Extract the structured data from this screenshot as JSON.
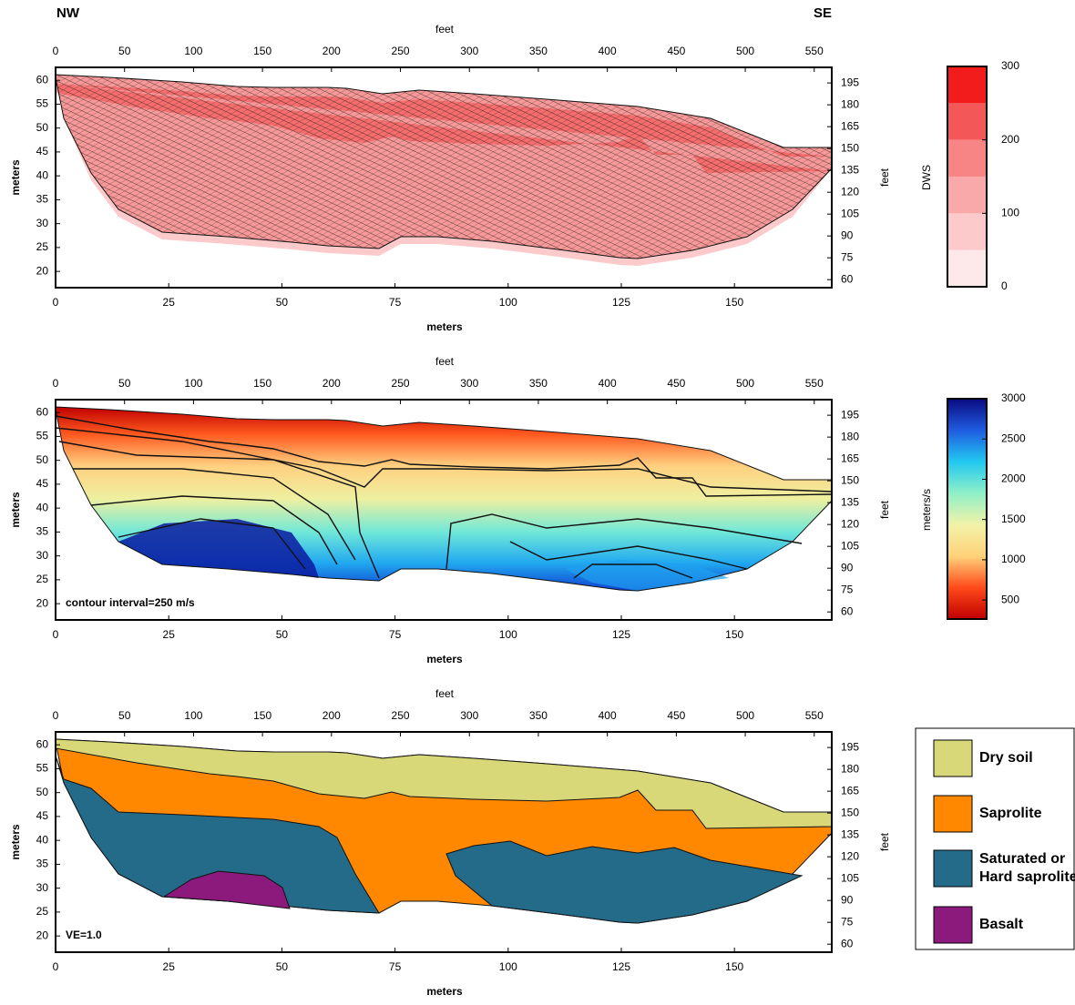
{
  "header": {
    "left": "NW",
    "right": "SE"
  },
  "axes": {
    "x_label": "meters",
    "x_top_label": "feet",
    "y_label": "meters",
    "y_right_label": "feet",
    "x_range": [
      0,
      171.5
    ],
    "x_ticks": [
      0,
      25,
      50,
      75,
      100,
      125,
      150
    ],
    "x_top_range": [
      0,
      562.7
    ],
    "x_top_ticks": [
      0,
      50,
      100,
      150,
      200,
      250,
      300,
      350,
      400,
      450,
      500,
      550
    ],
    "y_range": [
      16.6,
      62.7
    ],
    "y_ticks": [
      20,
      25,
      30,
      35,
      40,
      45,
      50,
      55,
      60
    ],
    "y_right_range": [
      54.5,
      205.7
    ],
    "y_right_ticks": [
      60,
      75,
      90,
      105,
      120,
      135,
      150,
      165,
      180,
      195
    ]
  },
  "panels": [
    {
      "colorbar": {
        "label": "DWS",
        "range": [
          0,
          300
        ],
        "ticks": [
          0,
          100,
          200,
          300
        ],
        "colors": [
          "#fde9e9",
          "#fccaca",
          "#f9a9a9",
          "#f78585",
          "#f45757",
          "#f21c1c"
        ]
      }
    },
    {
      "annotation": "contour interval=250 m/s",
      "colorbar": {
        "label": "meters/s",
        "range": [
          264,
          3000
        ],
        "ticks": [
          500,
          1000,
          1500,
          2000,
          2500,
          3000
        ],
        "colors": [
          "#c00000",
          "#ff4a1a",
          "#ffd27a",
          "#f2f2a8",
          "#8ff0c8",
          "#22c8f0",
          "#1f5ce0",
          "#0a0a80"
        ]
      }
    },
    {
      "annotation": "VE=1.0",
      "legend": [
        {
          "lines": [
            "Dry soil"
          ],
          "color": "#d8d878"
        },
        {
          "lines": [
            "Saprolite"
          ],
          "color": "#ff8800"
        },
        {
          "lines": [
            "Saturated or",
            "Hard saprolite"
          ],
          "color": "#246b8a"
        },
        {
          "lines": [
            "Basalt"
          ],
          "color": "#8c1a7c"
        }
      ]
    }
  ]
}
